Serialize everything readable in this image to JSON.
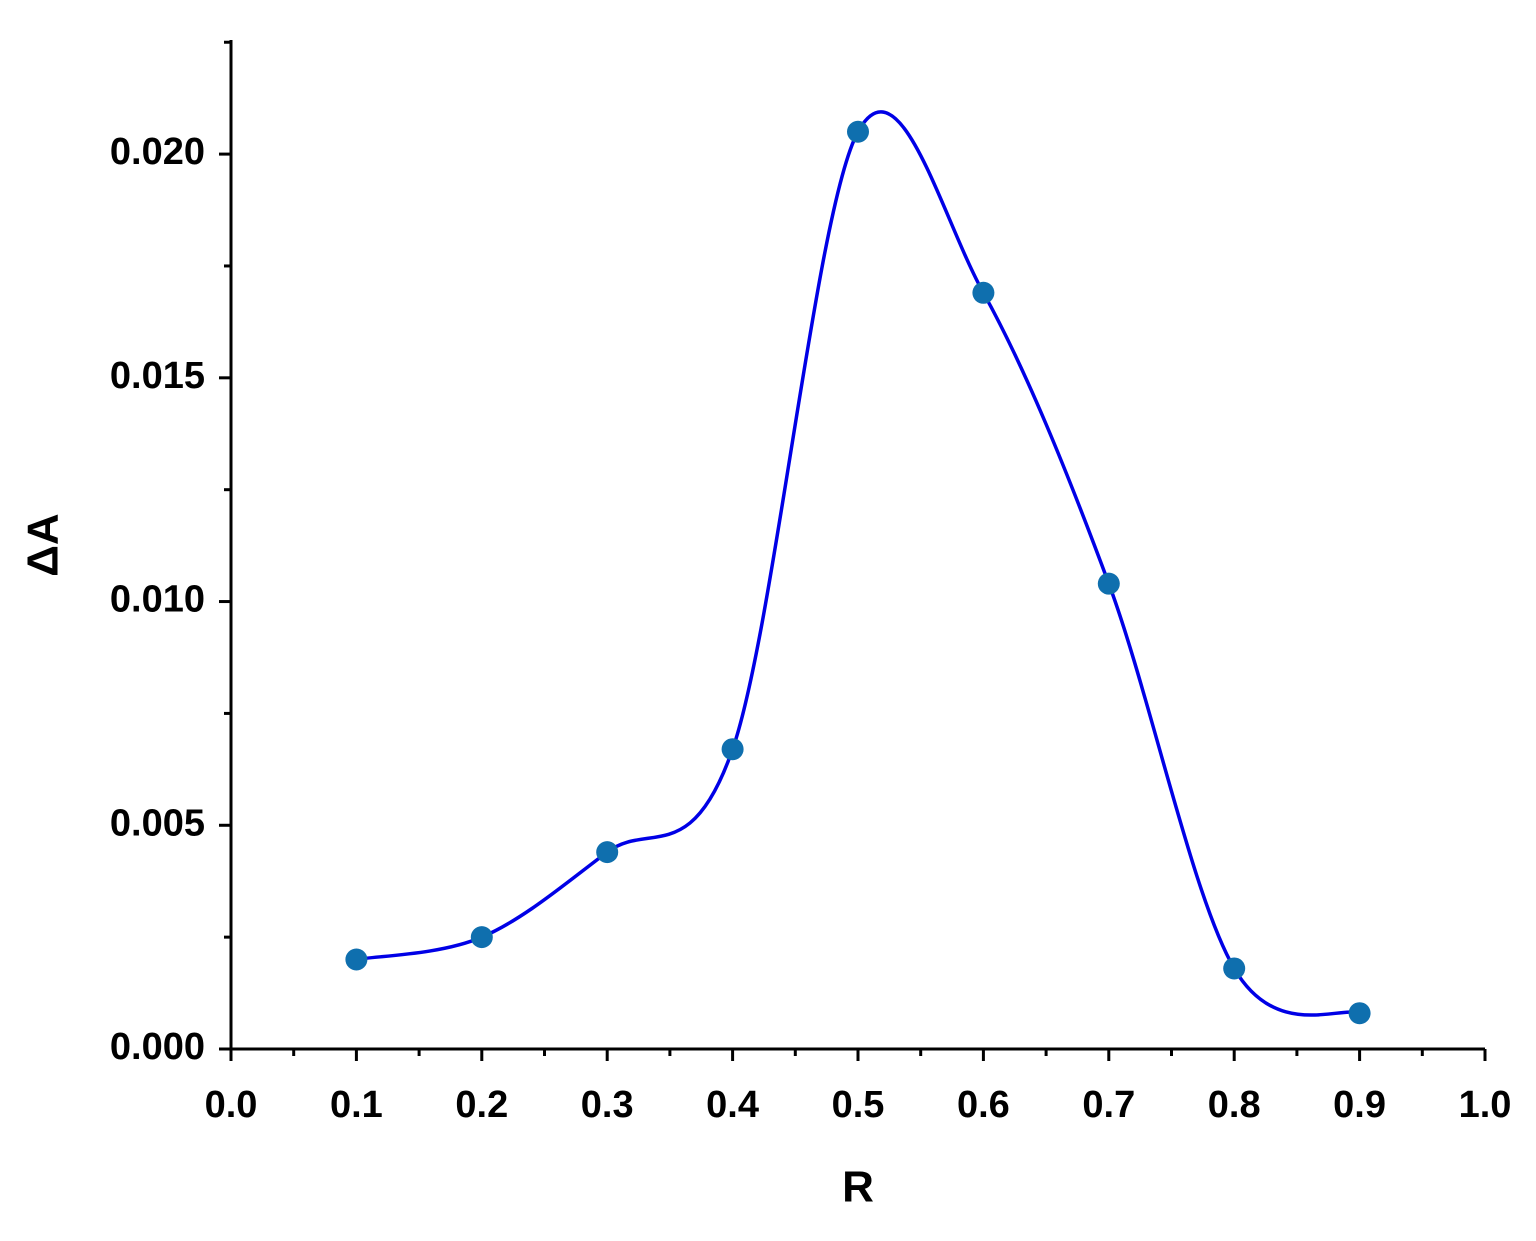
{
  "chart_data": {
    "type": "line",
    "x_label": "R",
    "y_label": "ΔA",
    "x": [
      0.1,
      0.2,
      0.3,
      0.4,
      0.5,
      0.6,
      0.7,
      0.8,
      0.9
    ],
    "series": [
      {
        "values": [
          0.002,
          0.0025,
          0.0044,
          0.0067,
          0.0205,
          0.0169,
          0.0104,
          0.0018,
          0.0008
        ],
        "color": "#0000e6",
        "marker_color": "#0f6fae"
      }
    ],
    "smooth": true,
    "xlim": [
      0,
      1.0
    ],
    "xticks": [
      {
        "value": 0,
        "label": "0.0"
      },
      0.1,
      0.2,
      0.3,
      0.4,
      0.5,
      0.6,
      0.7,
      0.8,
      0.9,
      {
        "value": 1.0,
        "label": "1.0"
      }
    ],
    "ylim": [
      0,
      0.02255
    ],
    "yticks": [
      {
        "value": 0,
        "label": "0.000"
      },
      {
        "value": 0.005,
        "label": "0.005"
      },
      {
        "value": 0.01,
        "label": "0.010"
      },
      {
        "value": 0.015,
        "label": "0.015"
      },
      {
        "value": 0.02,
        "label": "0.020"
      }
    ]
  }
}
